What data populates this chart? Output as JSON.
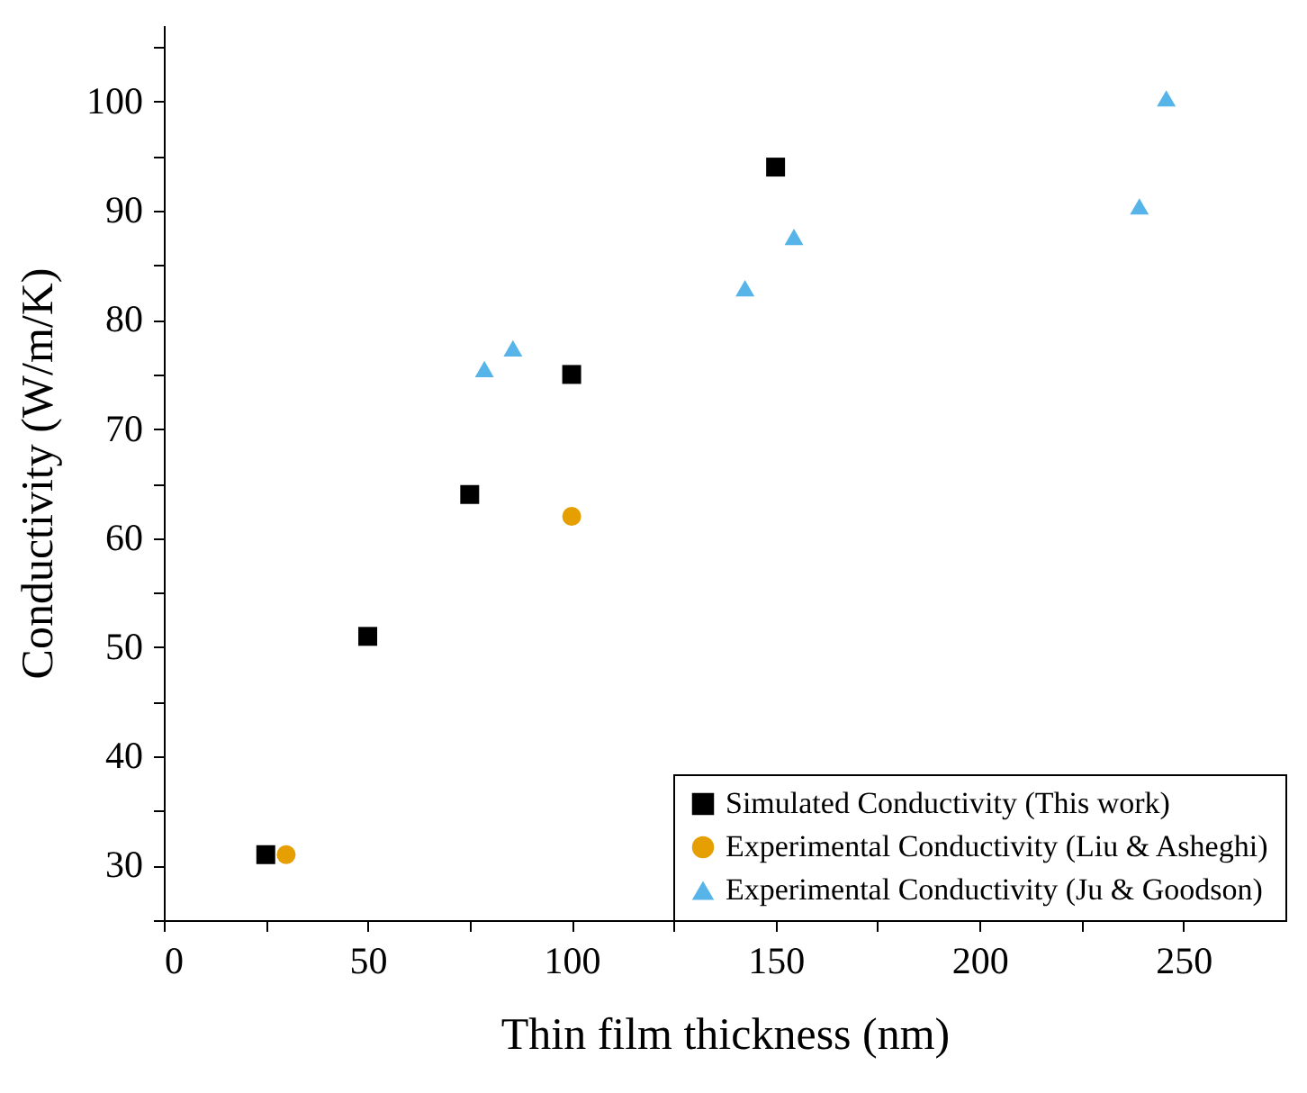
{
  "chart_data": {
    "type": "scatter",
    "xlabel": "Thin film thickness (nm)",
    "ylabel": "Conductivity (W/m/K)",
    "xlim": [
      0,
      275
    ],
    "ylim": [
      25,
      107
    ],
    "xticks": [
      0,
      {
        "value": 25,
        "label": null
      },
      50,
      {
        "value": 75,
        "label": null
      },
      100,
      {
        "value": 125,
        "label": null
      },
      150,
      {
        "value": 175,
        "label": null
      },
      200,
      {
        "value": 225,
        "label": null
      },
      250
    ],
    "yticks": [
      {
        "value": 25,
        "label": null
      },
      30,
      {
        "value": 35,
        "label": null
      },
      40,
      {
        "value": 45,
        "label": null
      },
      50,
      {
        "value": 55,
        "label": null
      },
      60,
      {
        "value": 65,
        "label": null
      },
      70,
      {
        "value": 75,
        "label": null
      },
      80,
      {
        "value": 85,
        "label": null
      },
      90,
      {
        "value": 95,
        "label": null
      },
      100,
      {
        "value": 105,
        "label": null
      }
    ],
    "grid": false,
    "legend": "bottom right",
    "series": [
      {
        "name": "Simulated Conductivity (This work)",
        "color": "#000000",
        "marker": "square",
        "x": [
          25,
          50,
          75,
          100,
          150
        ],
        "values": [
          31,
          51,
          64,
          75,
          94
        ]
      },
      {
        "name": "Experimental Conductivity (Liu & Asheghi)",
        "color": "#e69f00",
        "marker": "circle",
        "x": [
          30,
          100
        ],
        "values": [
          31,
          62
        ]
      },
      {
        "name": "Experimental Conductivity (Ju & Goodson)",
        "color": "#56b4e9",
        "marker": "triangle",
        "x": [
          78.6,
          85.6,
          142.5,
          154.5,
          239.2,
          245.8
        ],
        "values": [
          75.5,
          77.4,
          82.9,
          87.6,
          90.4,
          100.3
        ]
      }
    ]
  }
}
